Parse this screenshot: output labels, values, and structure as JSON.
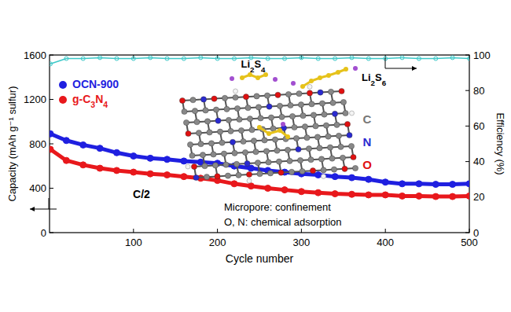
{
  "chart_data": {
    "type": "line",
    "x_label": "Cycle number",
    "y_label": "Capacity (mAh g⁻¹ sulfur)",
    "y2_label": "Efficiency (%)",
    "x": [
      1,
      20,
      40,
      60,
      80,
      100,
      120,
      140,
      160,
      180,
      200,
      220,
      240,
      260,
      280,
      300,
      320,
      340,
      360,
      380,
      400,
      420,
      440,
      460,
      480,
      500
    ],
    "series": [
      {
        "name": "OCN-900",
        "color": "#1f1fe0",
        "marker": "circle",
        "values": [
          890,
          830,
          790,
          760,
          720,
          690,
          670,
          660,
          645,
          635,
          625,
          600,
          580,
          560,
          545,
          530,
          520,
          505,
          495,
          480,
          455,
          440,
          440,
          435,
          435,
          440
        ]
      },
      {
        "name": "g-C3N4",
        "color": "#e8181c",
        "marker": "circle",
        "values": [
          750,
          650,
          610,
          580,
          560,
          545,
          530,
          520,
          505,
          490,
          470,
          440,
          420,
          400,
          385,
          370,
          360,
          350,
          345,
          340,
          340,
          330,
          330,
          325,
          325,
          330
        ]
      },
      {
        "name": "Efficiency",
        "color": "#3cc8c8",
        "marker": "open_circle",
        "axis": "y2",
        "values": [
          95,
          98,
          98,
          98.5,
          98,
          98,
          98.5,
          98,
          98,
          98.5,
          98,
          98,
          98.5,
          98,
          98,
          98.5,
          98,
          98,
          98.5,
          98,
          98,
          98.5,
          98,
          98,
          98.5,
          98
        ]
      }
    ],
    "xlim": [
      0,
      500
    ],
    "xticks": [
      100,
      200,
      300,
      400,
      500
    ],
    "ylim": [
      0,
      1600
    ],
    "yticks": [
      0,
      400,
      800,
      1200,
      1600
    ],
    "y2lim": [
      0,
      100
    ],
    "y2ticks": [
      0,
      20,
      40,
      60,
      80,
      100
    ],
    "legend": "upper left",
    "grid": false,
    "annotations": [
      "C/2",
      "Micropore: confinement",
      "O, N: chemical adsorption",
      "Li2S4",
      "Li2S6",
      "C",
      "N",
      "O"
    ]
  }
}
